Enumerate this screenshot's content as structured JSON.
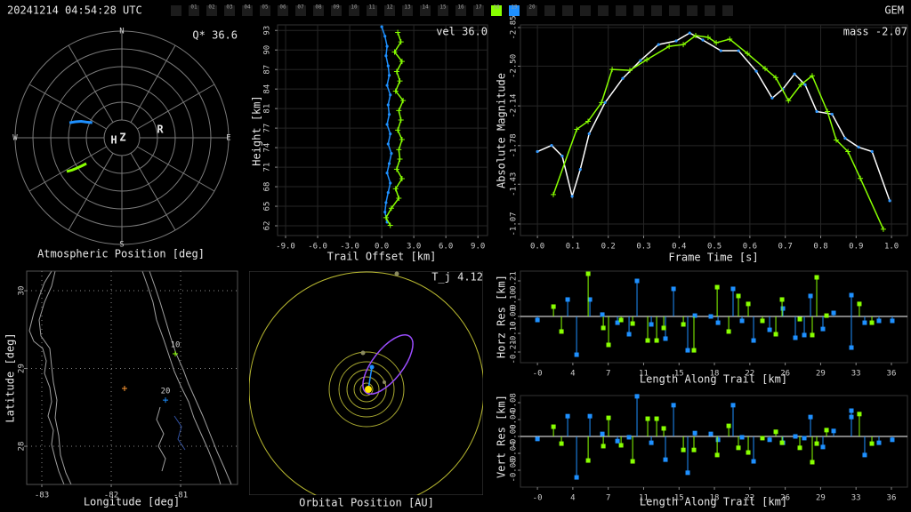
{
  "header": {
    "timestamp": "20241214 04:54:28 UTC",
    "shower": "GEM",
    "frames": [
      {
        "label": "01"
      },
      {
        "label": "02"
      },
      {
        "label": "03"
      },
      {
        "label": "04"
      },
      {
        "label": "05"
      },
      {
        "label": "06"
      },
      {
        "label": "07"
      },
      {
        "label": "08"
      },
      {
        "label": "09"
      },
      {
        "label": "10"
      },
      {
        "label": "11"
      },
      {
        "label": "12"
      },
      {
        "label": "13"
      },
      {
        "label": "14"
      },
      {
        "label": "15"
      },
      {
        "label": "16"
      },
      {
        "label": "17"
      },
      {
        "label": "18",
        "color": "#88ff00"
      },
      {
        "label": "19",
        "color": "#1e90ff"
      },
      {
        "label": "20"
      }
    ]
  },
  "chart_data": [
    {
      "type": "polar",
      "title": "Atmospheric Position [deg]",
      "annotation": "Q* 36.6",
      "compass": [
        {
          "label": "N",
          "az": 0
        },
        {
          "label": "E",
          "az": 90
        },
        {
          "label": "S",
          "az": 180
        },
        {
          "label": "W",
          "az": 270
        }
      ],
      "markers": [
        "H",
        "Z",
        "R"
      ],
      "rlim": [
        0,
        90
      ],
      "rticks": [
        15,
        30,
        45,
        60,
        75,
        90
      ],
      "azticks": [
        0,
        30,
        60,
        90,
        120,
        150,
        180,
        210,
        240,
        270,
        300,
        330
      ],
      "series": [
        {
          "color": "#1e90ff",
          "az": [
            286,
            289,
            292,
            294,
            297
          ],
          "zd": [
            46,
            41.5,
            37,
            32.5,
            28
          ]
        },
        {
          "color": "#88ff00",
          "az": [
            238.5,
            237,
            236,
            235,
            234
          ],
          "zd": [
            54.5,
            50,
            46,
            41.5,
            37
          ]
        }
      ]
    },
    {
      "type": "line",
      "xlabel": "Trail Offset [km]",
      "ylabel": "Height [km]",
      "annotation": "vel 36.0",
      "grid": true,
      "xlim": [
        -9.75,
        9.9
      ],
      "ylim": [
        60.37,
        93.8
      ],
      "xticks": [
        {
          "value": -9,
          "label": "-9.0"
        },
        {
          "value": -6,
          "label": "-6.0"
        },
        {
          "value": -3,
          "label": "-3.0"
        },
        {
          "value": 0,
          "label": "0.0"
        },
        {
          "value": 3,
          "label": "3.0"
        },
        {
          "value": 6,
          "label": "6.0"
        },
        {
          "value": 9,
          "label": "9.0"
        }
      ],
      "yticks": [
        {
          "value": 61.92,
          "label": "62"
        },
        {
          "value": 65.02,
          "label": "65"
        },
        {
          "value": 68.12,
          "label": "68"
        },
        {
          "value": 71.22,
          "label": "71"
        },
        {
          "value": 74.32,
          "label": "74"
        },
        {
          "value": 77.42,
          "label": "77"
        },
        {
          "value": 80.52,
          "label": "81"
        },
        {
          "value": 83.62,
          "label": "84"
        },
        {
          "value": 86.72,
          "label": "87"
        },
        {
          "value": 89.82,
          "label": "90"
        },
        {
          "value": 92.92,
          "label": "93"
        }
      ],
      "series": [
        {
          "color": "#1e90ff",
          "marker": "dot",
          "marker_color": "#1e90ff",
          "x": [
            0.0,
            0.3,
            0.5,
            0.4,
            0.6,
            0.7,
            0.5,
            0.8,
            0.6,
            0.7,
            0.5,
            0.8,
            0.6,
            0.9,
            0.7,
            0.5,
            0.8,
            0.6,
            0.4,
            0.3,
            0.5
          ],
          "values": [
            93.5,
            92.0,
            90.4,
            88.9,
            87.3,
            85.8,
            84.2,
            82.7,
            81.1,
            79.6,
            78.0,
            76.5,
            74.9,
            73.4,
            71.8,
            70.3,
            68.7,
            67.2,
            65.6,
            64.1,
            62.5
          ]
        },
        {
          "color": "#88ff00",
          "marker": "+",
          "x": [
            1.5,
            1.8,
            1.2,
            1.9,
            1.4,
            1.7,
            1.3,
            2.0,
            1.6,
            1.8,
            1.5,
            1.9,
            1.6,
            1.7,
            1.4,
            1.9,
            1.3,
            1.6,
            0.9,
            0.4,
            0.8
          ],
          "values": [
            92.6,
            91.1,
            89.5,
            88.0,
            86.4,
            84.9,
            83.3,
            81.8,
            80.2,
            78.7,
            77.1,
            75.6,
            74.0,
            72.5,
            70.9,
            69.4,
            67.8,
            66.3,
            64.7,
            63.2,
            62.0
          ]
        }
      ]
    },
    {
      "type": "line",
      "xlabel": "Frame Time [s]",
      "ylabel": "Absolute Magnitude",
      "annotation": "mass -2.07",
      "grid": true,
      "xlim": [
        -0.048,
        1.045
      ],
      "ylim": [
        -0.965,
        -2.874
      ],
      "xticks": [
        {
          "value": 0,
          "label": "0.0"
        },
        0.1,
        0.2,
        0.3,
        0.4,
        0.5,
        0.6,
        0.7,
        0.8,
        0.9,
        {
          "value": 1,
          "label": "1.0"
        }
      ],
      "yticks": [
        -2.85,
        {
          "value": -2.5,
          "label": "-2.50"
        },
        -2.14,
        -1.78,
        -1.43,
        -1.07
      ],
      "series": [
        {
          "color": "#ffffff",
          "marker": "dot",
          "marker_color": "#3399ff",
          "x": [
            0.0,
            0.04,
            0.07,
            0.098,
            0.121,
            0.146,
            0.191,
            0.241,
            0.291,
            0.342,
            0.392,
            0.43,
            0.467,
            0.518,
            0.568,
            0.618,
            0.663,
            0.693,
            0.726,
            0.756,
            0.789,
            0.832,
            0.869,
            0.907,
            0.945,
            0.995
          ],
          "values": [
            -1.726,
            -1.782,
            -1.685,
            -1.321,
            -1.564,
            -1.887,
            -2.17,
            -2.389,
            -2.551,
            -2.696,
            -2.729,
            -2.801,
            -2.737,
            -2.64,
            -2.64,
            -2.454,
            -2.211,
            -2.292,
            -2.429,
            -2.332,
            -2.089,
            -2.065,
            -1.847,
            -1.766,
            -1.726,
            -1.28
          ]
        },
        {
          "color": "#88ff00",
          "marker": "+",
          "x": [
            0.045,
            0.111,
            0.143,
            0.181,
            0.211,
            0.261,
            0.309,
            0.372,
            0.412,
            0.447,
            0.482,
            0.505,
            0.543,
            0.593,
            0.643,
            0.673,
            0.709,
            0.744,
            0.776,
            0.819,
            0.844,
            0.877,
            0.912,
            0.977
          ],
          "values": [
            -1.337,
            -1.928,
            -2.0,
            -2.17,
            -2.47,
            -2.462,
            -2.559,
            -2.68,
            -2.696,
            -2.777,
            -2.761,
            -2.712,
            -2.745,
            -2.615,
            -2.478,
            -2.397,
            -2.187,
            -2.332,
            -2.413,
            -2.089,
            -1.831,
            -1.726,
            -1.483,
            -1.022
          ]
        }
      ]
    },
    {
      "type": "map",
      "xlabel": "Longitude [deg]",
      "ylabel": "Latitude [deg]",
      "grid": true,
      "xlim": [
        -83.218,
        -80.18
      ],
      "ylim": [
        27.509,
        30.252
      ],
      "xticks": [
        -83,
        -82,
        -81
      ],
      "yticks": [
        28,
        29,
        30
      ],
      "markers": [
        {
          "lon": -81.077,
          "lat": 29.189,
          "color": "#88ff00",
          "label": "10"
        },
        {
          "lon": -81.218,
          "lat": 28.594,
          "color": "#1e90ff",
          "label": "20"
        },
        {
          "lon": -81.808,
          "lat": 28.743,
          "color": "#ff9933"
        }
      ]
    },
    {
      "type": "orbit",
      "xlabel": "Orbital Position [AU]",
      "annotation": "T_j 4.12"
    },
    {
      "type": "stem",
      "xlabel": "Length Along Trail [km]",
      "ylabel": "Horz Res [km]",
      "xlim": [
        -1.75,
        38.09
      ],
      "ylim": [
        -0.273,
        0.2678
      ],
      "xticks": [
        {
          "value": 0,
          "label": "-0"
        },
        {
          "value": 3.644,
          "label": "4"
        },
        {
          "value": 7.288,
          "label": "7"
        },
        {
          "value": 10.932,
          "label": "11"
        },
        {
          "value": 14.576,
          "label": "15"
        },
        {
          "value": 18.22,
          "label": "18"
        },
        {
          "value": 21.864,
          "label": "22"
        },
        {
          "value": 25.508,
          "label": "26"
        },
        {
          "value": 29.152,
          "label": "29"
        },
        {
          "value": 32.796,
          "label": "33"
        },
        {
          "value": 36.44,
          "label": "36"
        }
      ],
      "yticks": [
        0.21,
        {
          "value": 0.1,
          "label": "0.10"
        },
        {
          "value": 0,
          "label": "0.00"
        },
        {
          "value": -0.1,
          "label": "-0.10"
        },
        -0.21
      ],
      "series": [
        {
          "color": "#1e90ff",
          "x": [
            0,
            3.11,
            4.03,
            5.4,
            6.68,
            8.24,
            9.43,
            10.25,
            11.72,
            13.18,
            14.01,
            15.47,
            16.21,
            17.85,
            18.59,
            20.14,
            21.06,
            22.25,
            23.9,
            25.27,
            26.55,
            27.47,
            28.11,
            29.39,
            30.49,
            32.32,
            32.32,
            33.69,
            35.16,
            36.53
          ],
          "values": [
            -0.021,
            0.1,
            -0.226,
            0.1,
            0.011,
            -0.037,
            -0.105,
            0.21,
            -0.047,
            -0.131,
            0.163,
            -0.2,
            0.005,
            0,
            -0.037,
            0.163,
            -0.026,
            -0.142,
            -0.079,
            0.047,
            -0.126,
            -0.11,
            0.121,
            -0.074,
            0.021,
            0.126,
            -0.184,
            -0.037,
            -0.026,
            -0.026
          ]
        },
        {
          "color": "#88ff00",
          "x": [
            1.65,
            2.47,
            5.22,
            6.78,
            7.32,
            8.61,
            9.8,
            11.35,
            12.27,
            13.0,
            15.02,
            16.11,
            18.5,
            19.69,
            20.69,
            21.7,
            23.16,
            24.54,
            25.18,
            27.01,
            28.29,
            28.75,
            29.76,
            33.14,
            34.43
          ],
          "values": [
            0.058,
            -0.089,
            0.252,
            -0.068,
            -0.168,
            -0.021,
            -0.042,
            -0.142,
            -0.142,
            -0.068,
            -0.047,
            -0.2,
            0.173,
            -0.089,
            0.121,
            0.074,
            -0.026,
            -0.105,
            0.1,
            -0.016,
            -0.11,
            0.231,
            0.005,
            0.074,
            -0.037
          ]
        }
      ]
    },
    {
      "type": "stem",
      "xlabel": "Length Along Trail [km]",
      "ylabel": "Vert Res [km]",
      "xlim": [
        -1.75,
        38.09
      ],
      "ylim": [
        -0.12,
        0.0968
      ],
      "xticks": [
        {
          "value": 0,
          "label": "-0"
        },
        {
          "value": 3.644,
          "label": "4"
        },
        {
          "value": 7.288,
          "label": "7"
        },
        {
          "value": 10.932,
          "label": "11"
        },
        {
          "value": 14.576,
          "label": "15"
        },
        {
          "value": 18.22,
          "label": "18"
        },
        {
          "value": 21.864,
          "label": "22"
        },
        {
          "value": 25.508,
          "label": "26"
        },
        {
          "value": 29.152,
          "label": "29"
        },
        {
          "value": 32.796,
          "label": "33"
        },
        {
          "value": 36.44,
          "label": "36"
        }
      ],
      "yticks": [
        0.08,
        0.04,
        {
          "value": 0,
          "label": "-0.00"
        },
        -0.04,
        -0.08
      ],
      "series": [
        {
          "color": "#1e90ff",
          "x": [
            0,
            3.11,
            4.03,
            5.4,
            6.68,
            8.24,
            9.43,
            10.25,
            11.72,
            13.18,
            14.01,
            15.47,
            16.21,
            17.85,
            18.59,
            20.14,
            21.06,
            22.25,
            23.9,
            25.27,
            26.55,
            27.47,
            28.11,
            29.39,
            30.49,
            32.32,
            32.32,
            33.69,
            35.16,
            36.53
          ],
          "values": [
            -0.006,
            0.048,
            -0.097,
            0.048,
            0.006,
            -0.011,
            -0.002,
            0.095,
            -0.015,
            -0.055,
            0.074,
            -0.086,
            0.008,
            0.006,
            -0.008,
            0.074,
            -0.002,
            -0.059,
            -0.008,
            -0.015,
            0,
            -0.004,
            0.046,
            -0.025,
            0.013,
            0.061,
            0.046,
            -0.044,
            -0.015,
            -0.008
          ]
        },
        {
          "color": "#88ff00",
          "x": [
            1.65,
            2.47,
            5.22,
            6.78,
            7.32,
            8.61,
            9.8,
            11.35,
            12.27,
            13.0,
            15.02,
            16.11,
            18.5,
            19.69,
            20.69,
            21.7,
            23.16,
            24.54,
            25.18,
            27.01,
            28.29,
            28.75,
            29.76,
            33.14,
            34.43
          ],
          "values": [
            0.023,
            -0.017,
            -0.057,
            -0.023,
            0.044,
            -0.021,
            -0.059,
            0.042,
            0.042,
            0.019,
            -0.032,
            -0.032,
            -0.044,
            0.025,
            -0.027,
            -0.038,
            -0.004,
            0.011,
            -0.015,
            -0.027,
            -0.061,
            -0.017,
            0.015,
            0.053,
            -0.017
          ]
        }
      ]
    }
  ]
}
